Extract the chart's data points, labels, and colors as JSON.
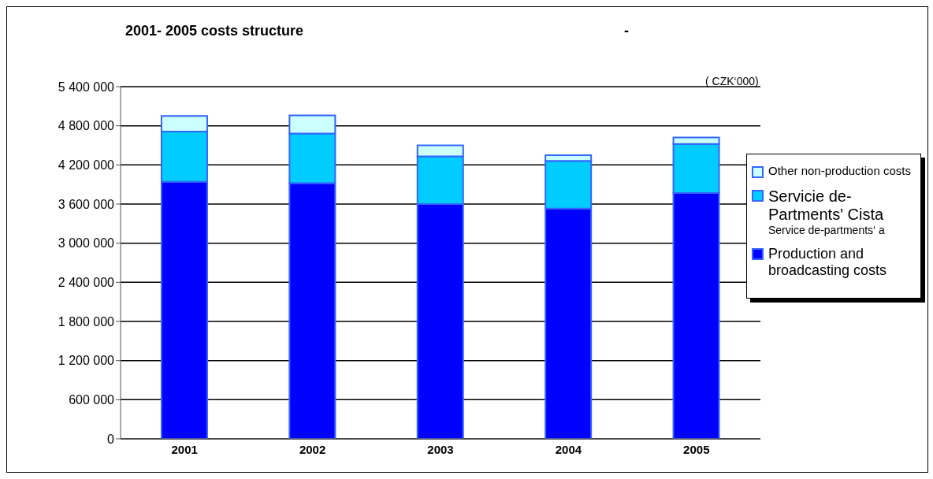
{
  "chart_data": {
    "type": "bar",
    "title": "2001- 2005 costs structure",
    "annotations": [
      "( CZK‘000)",
      "-",
      "Service de-partments‘ a"
    ],
    "categories": [
      "2001",
      "2002",
      "2003",
      "2004",
      "2005"
    ],
    "stacked": true,
    "series": [
      {
        "name": "Production and broadcasting costs",
        "color": "#0000ff",
        "values": [
          3940000,
          3920000,
          3600000,
          3530000,
          3770000
        ]
      },
      {
        "name": "Servicie de-Partments' Cista",
        "color": "#00ccff",
        "values": [
          770000,
          760000,
          730000,
          730000,
          750000
        ]
      },
      {
        "name": "Other non-production costs",
        "color": "#ccffff",
        "values": [
          240000,
          280000,
          170000,
          90000,
          100000
        ]
      }
    ],
    "ylim": [
      0,
      5400000
    ],
    "yticks": [
      0,
      {
        "value": 600000,
        "label": "600 000"
      },
      {
        "value": 1200000,
        "label": "1 200 000"
      },
      {
        "value": 1800000,
        "label": "1 800 000"
      },
      {
        "value": 2400000,
        "label": "2 400 000"
      },
      {
        "value": 3000000,
        "label": "3 000 000"
      },
      {
        "value": 3600000,
        "label": "3 600 000"
      },
      {
        "value": 4200000,
        "label": "4 200 000"
      },
      {
        "value": 4800000,
        "label": "4 800 000"
      },
      {
        "value": 5400000,
        "label": "5 400 000"
      }
    ],
    "grid": "y",
    "legend": "right"
  }
}
